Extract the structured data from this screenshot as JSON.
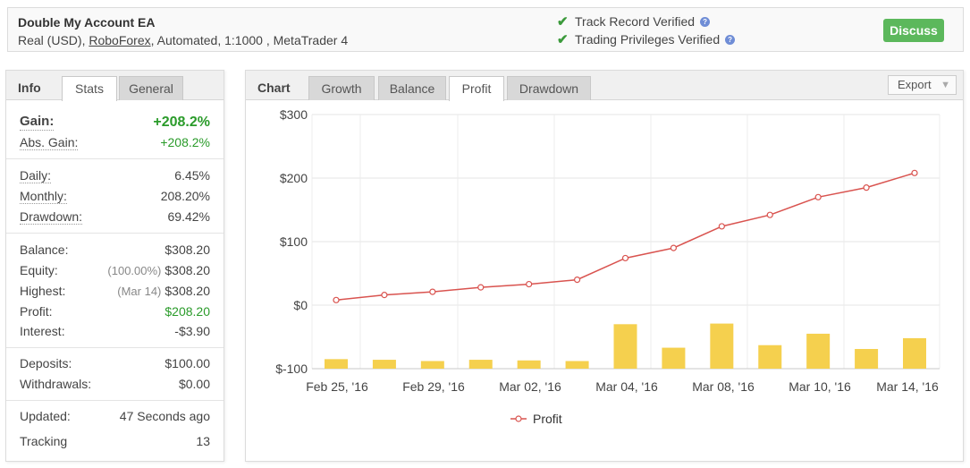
{
  "header": {
    "title": "Double My Account EA",
    "sub_prefix": "Real (USD),",
    "broker": "RoboForex",
    "sub_suffix": ", Automated, 1:1000 , MetaTrader 4",
    "verify1": "Track Record Verified",
    "verify2": "Trading Privileges Verified",
    "discuss": "Discuss"
  },
  "info": {
    "head": "Info",
    "tabs": [
      "Stats",
      "General"
    ],
    "gain_label": "Gain:",
    "gain_value": "+208.2%",
    "abs_gain_label": "Abs. Gain:",
    "abs_gain_value": "+208.2%",
    "daily_label": "Daily:",
    "daily_value": "6.45%",
    "monthly_label": "Monthly:",
    "monthly_value": "208.20%",
    "drawdown_label": "Drawdown:",
    "drawdown_value": "69.42%",
    "balance_label": "Balance:",
    "balance_value": "$308.20",
    "equity_label": "Equity:",
    "equity_pct": "(100.00%)",
    "equity_value": "$308.20",
    "highest_label": "Highest:",
    "highest_date": "(Mar 14)",
    "highest_value": "$308.20",
    "profit_label": "Profit:",
    "profit_value": "$208.20",
    "interest_label": "Interest:",
    "interest_value": "-$3.90",
    "deposits_label": "Deposits:",
    "deposits_value": "$100.00",
    "withdrawals_label": "Withdrawals:",
    "withdrawals_value": "$0.00",
    "updated_label": "Updated:",
    "updated_value": "47 Seconds ago",
    "tracking_label": "Tracking",
    "tracking_value": "13"
  },
  "chart_panel": {
    "head": "Chart",
    "tabs": [
      "Growth",
      "Balance",
      "Profit",
      "Drawdown"
    ],
    "active_tab": "Profit",
    "export": "Export"
  },
  "colors": {
    "line": "#d9534f",
    "bar": "#f5d04e",
    "green": "#2a9b2a",
    "discuss": "#5cb85c"
  },
  "chart_data": {
    "type": "line",
    "title": "",
    "xlabel": "",
    "ylabel": "",
    "ylim": [
      -100,
      300
    ],
    "yticks": [
      300,
      200,
      100,
      0,
      -100
    ],
    "ytick_labels": [
      "$300",
      "$200",
      "$100",
      "$0",
      "$-100"
    ],
    "x_tick_labels": [
      "Feb 25, '16",
      "Feb 29, '16",
      "Mar 02, '16",
      "Mar 04, '16",
      "Mar 08, '16",
      "Mar 10, '16",
      "Mar 14, '16"
    ],
    "legend": "Profit",
    "legend_position": "bottom-center",
    "grid": true,
    "series": [
      {
        "name": "Profit",
        "type": "line",
        "values": [
          8,
          16,
          21,
          28,
          33,
          40,
          74,
          90,
          124,
          142,
          170,
          185,
          208
        ]
      },
      {
        "type": "bar",
        "values": [
          -85,
          -86,
          -88,
          -86,
          -87,
          -88,
          -30,
          -67,
          -29,
          -63,
          -45,
          -69,
          -52
        ]
      }
    ]
  }
}
